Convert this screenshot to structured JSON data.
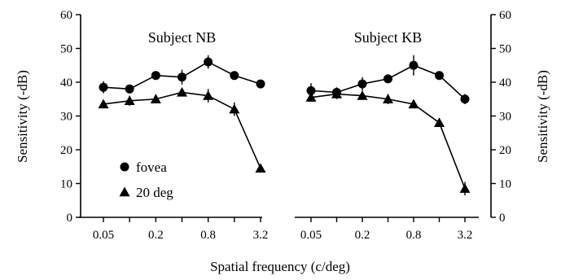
{
  "chart_data": {
    "type": "line",
    "xlabel": "Spatial frequency (c/deg)",
    "ylabel": "Sensitivity (-dB)",
    "ylim": [
      0,
      60
    ],
    "yticks": [
      0,
      10,
      20,
      30,
      40,
      50,
      60
    ],
    "x": [
      0.05,
      0.1,
      0.2,
      0.4,
      0.8,
      1.6,
      3.2
    ],
    "xtick_labels": [
      "0.05",
      "0.2",
      "0.8",
      "3.2"
    ],
    "legend": {
      "placement": "lower-left of left panel",
      "entries": [
        {
          "label": "fovea",
          "marker": "circle"
        },
        {
          "label": "20 deg",
          "marker": "triangle"
        }
      ]
    },
    "panels": [
      {
        "title": "Subject NB",
        "series": [
          {
            "name": "fovea",
            "marker": "circle",
            "values": [
              38.5,
              38,
              42,
              41.5,
              46,
              42,
              39.5
            ],
            "errors": [
              1.8,
              1,
              1.2,
              2.2,
              2,
              1,
              0
            ]
          },
          {
            "name": "20 deg",
            "marker": "triangle",
            "values": [
              33.5,
              34.5,
              35,
              37,
              36,
              32,
              14.5
            ],
            "errors": [
              1.2,
              1.5,
              1,
              1,
              2,
              2,
              0
            ]
          }
        ]
      },
      {
        "title": "Subject KB",
        "series": [
          {
            "name": "fovea",
            "marker": "circle",
            "values": [
              37.5,
              37,
              39.5,
              41,
              45,
              42,
              35
            ],
            "errors": [
              2.2,
              1.5,
              2,
              1,
              3,
              1,
              1.5
            ]
          },
          {
            "name": "20 deg",
            "marker": "triangle",
            "values": [
              35.5,
              36.5,
              36,
              35,
              33.5,
              28,
              8.5
            ],
            "errors": [
              1.2,
              1.5,
              1,
              1.5,
              1,
              0,
              2
            ]
          }
        ]
      }
    ]
  }
}
